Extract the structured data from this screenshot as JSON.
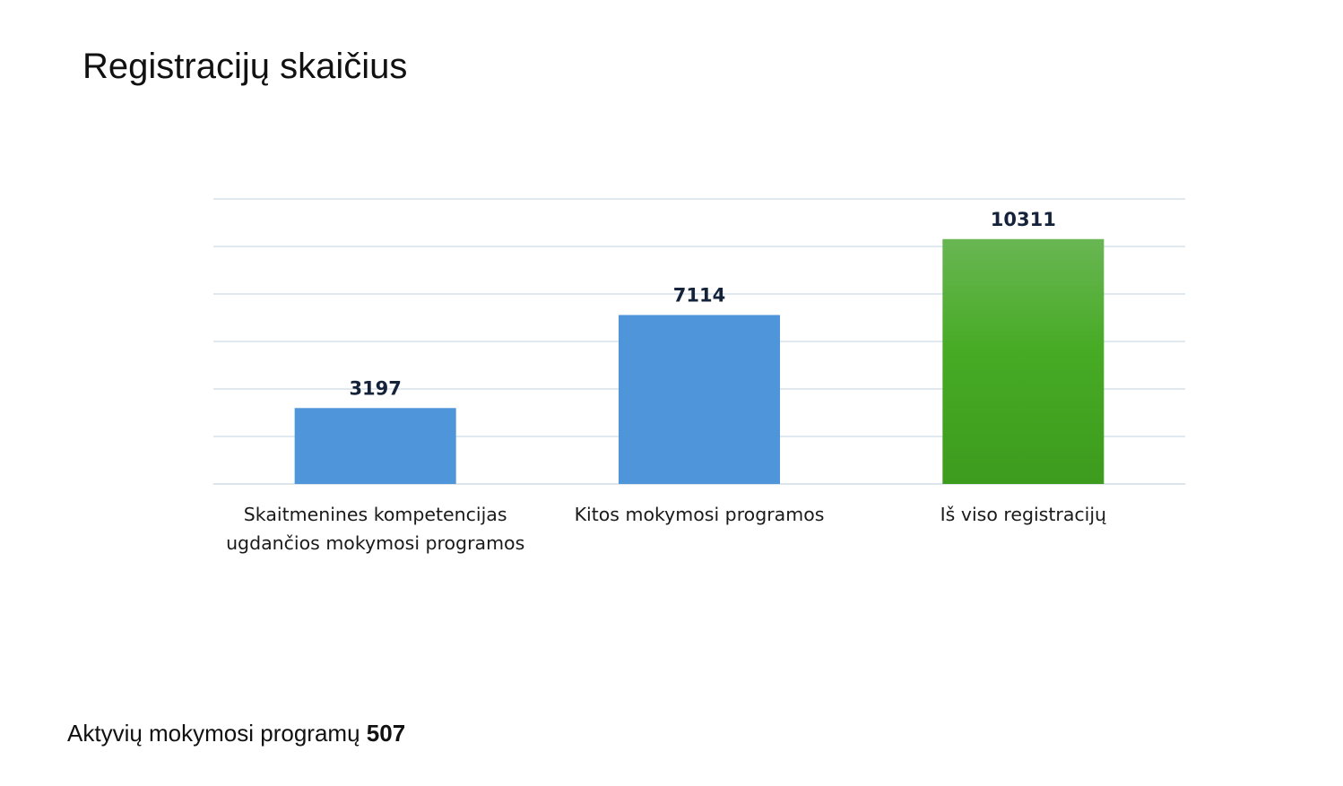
{
  "page": {
    "title": "Registracijų skaičius"
  },
  "footer": {
    "label": "Aktyvių mokymosi programų",
    "value": "507"
  },
  "chart_data": {
    "type": "bar",
    "title": "",
    "xlabel": "",
    "ylabel": "",
    "ylim": [
      0,
      12000
    ],
    "grid": true,
    "categories": [
      [
        "Skaitmenines kompetencijas",
        "ugdančios mokymosi programos"
      ],
      [
        "Kitos mokymosi programos"
      ],
      [
        "Iš viso registracijų"
      ]
    ],
    "values": [
      3197,
      7114,
      10311
    ],
    "colors": [
      "#4f95d9",
      "#4f95d9",
      "#47ab25"
    ],
    "gradient_top": [
      "#4f95d9",
      "#4f95d9",
      "#69b653"
    ]
  }
}
